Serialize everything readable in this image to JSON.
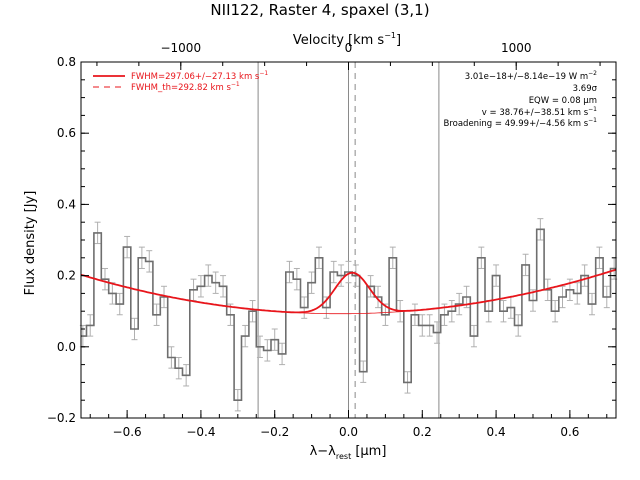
{
  "chart_data": {
    "type": "line",
    "title": "NII122, Raster 4, spaxel (3,1)",
    "xlabel": "λ−λ",
    "xlabel_sub": "rest",
    "xlabel_unit": " [μm]",
    "ylabel": "Flux density [Jy]",
    "top_axis_label": "Velocity [km s",
    "top_axis_label_sup": "−1",
    "top_axis_label_end": "]",
    "xlim": [
      -0.725,
      0.725
    ],
    "ylim": [
      -0.2,
      0.8
    ],
    "velocity_lim": [
      -1595,
      1595
    ],
    "x_ticks": [
      -0.6,
      -0.4,
      -0.2,
      0.0,
      0.2,
      0.4,
      0.6
    ],
    "x_tick_labels": [
      "−0.6",
      "−0.4",
      "−0.2",
      "0.0",
      "0.2",
      "0.4",
      "0.6"
    ],
    "y_ticks": [
      -0.2,
      0.0,
      0.2,
      0.4,
      0.6,
      0.8
    ],
    "y_tick_labels": [
      "−0.2",
      "0.0",
      "0.2",
      "0.4",
      "0.6",
      "0.8"
    ],
    "top_ticks": [
      -1000,
      0,
      1000
    ],
    "top_tick_labels": [
      "−1000",
      "0",
      "1000"
    ],
    "vertical_lines_solid": [
      -0.245,
      0.0,
      0.245
    ],
    "vertical_line_dashed": 0.018,
    "legend": [
      {
        "label": "FWHM=297.06+/−27.13 km s",
        "sup": "−1",
        "style": "solid"
      },
      {
        "label": "FWHM_th=292.82 km s",
        "sup": "−1",
        "style": "dashed"
      }
    ],
    "annotations": [
      {
        "text": "3.01e−18+/−8.14e−19 W m",
        "sup": "−2"
      },
      {
        "text": "3.69σ",
        "sup": ""
      },
      {
        "text": "EQW = 0.08 μm",
        "sup": ""
      },
      {
        "text": "v = 38.76+/−38.51 km s",
        "sup": "−1"
      },
      {
        "text": "Broadening = 49.99+/−4.56 km s",
        "sup": "−1"
      }
    ],
    "spectrum": {
      "x": [
        -0.72,
        -0.7,
        -0.68,
        -0.66,
        -0.64,
        -0.62,
        -0.6,
        -0.58,
        -0.56,
        -0.54,
        -0.52,
        -0.5,
        -0.48,
        -0.46,
        -0.44,
        -0.42,
        -0.4,
        -0.38,
        -0.36,
        -0.34,
        -0.32,
        -0.3,
        -0.28,
        -0.26,
        -0.24,
        -0.22,
        -0.2,
        -0.18,
        -0.16,
        -0.14,
        -0.12,
        -0.1,
        -0.08,
        -0.06,
        -0.04,
        -0.02,
        0.0,
        0.02,
        0.04,
        0.06,
        0.08,
        0.1,
        0.12,
        0.14,
        0.16,
        0.18,
        0.2,
        0.22,
        0.24,
        0.26,
        0.28,
        0.3,
        0.32,
        0.34,
        0.36,
        0.38,
        0.4,
        0.42,
        0.44,
        0.46,
        0.48,
        0.5,
        0.52,
        0.54,
        0.56,
        0.58,
        0.6,
        0.62,
        0.64,
        0.66,
        0.68,
        0.7,
        0.72
      ],
      "y": [
        0.03,
        0.06,
        0.32,
        0.19,
        0.15,
        0.12,
        0.28,
        0.05,
        0.25,
        0.24,
        0.09,
        0.14,
        -0.03,
        -0.06,
        -0.08,
        0.16,
        0.17,
        0.2,
        0.18,
        0.17,
        0.09,
        -0.15,
        0.03,
        0.1,
        0.0,
        -0.01,
        0.02,
        -0.02,
        0.21,
        0.19,
        0.11,
        0.18,
        0.25,
        0.11,
        0.21,
        0.2,
        0.21,
        0.2,
        -0.07,
        0.17,
        0.14,
        0.09,
        0.25,
        0.1,
        -0.1,
        0.09,
        0.06,
        0.06,
        0.04,
        0.09,
        0.1,
        0.12,
        0.14,
        0.03,
        0.25,
        0.1,
        0.2,
        0.1,
        0.11,
        0.06,
        0.23,
        0.13,
        0.33,
        0.16,
        0.1,
        0.14,
        0.16,
        0.15,
        0.2,
        0.12,
        0.25,
        0.14,
        0.22
      ],
      "yerr": 0.03
    },
    "model_baseline_coeffs": [
      0.093,
      0.01,
      0.0,
      0.222
    ],
    "model_gaussian": {
      "center": 0.01,
      "amplitude": 0.115,
      "sigma": 0.047
    }
  }
}
